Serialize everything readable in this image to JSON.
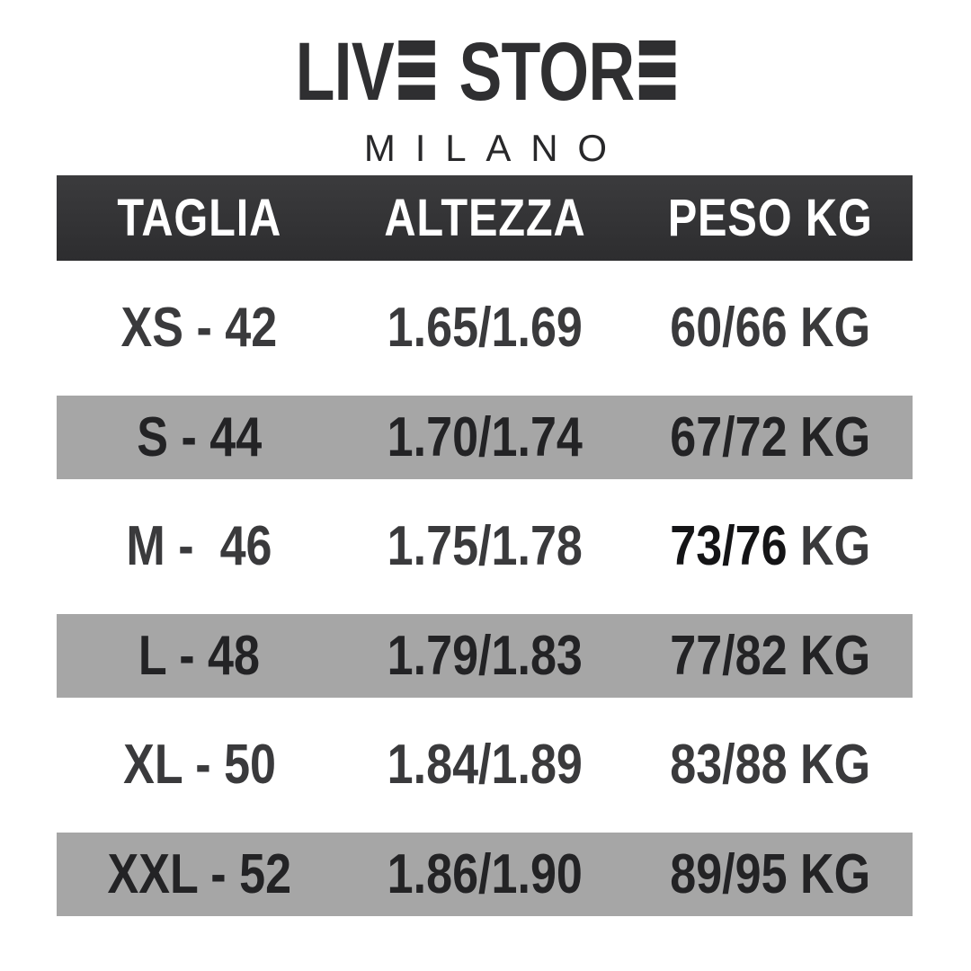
{
  "logo": {
    "word1": "LIV",
    "word2": "STOR",
    "subtitle": "MILANO"
  },
  "chart_data": {
    "type": "table",
    "columns": [
      "TAGLIA",
      "ALTEZZA",
      "PESO KG"
    ],
    "rows": [
      {
        "taglia": "XS - 42",
        "altezza": "1.65/1.69",
        "peso": "60/66",
        "peso_unit": "KG"
      },
      {
        "taglia": "S - 44",
        "altezza": "1.70/1.74",
        "peso": "67/72",
        "peso_unit": "KG"
      },
      {
        "taglia": "M -  46",
        "altezza": "1.75/1.78",
        "peso": "73/76",
        "peso_unit": "KG"
      },
      {
        "taglia": "L - 48",
        "altezza": "1.79/1.83",
        "peso": "77/82",
        "peso_unit": "KG"
      },
      {
        "taglia": "XL - 50",
        "altezza": "1.84/1.89",
        "peso": "83/88",
        "peso_unit": "KG"
      },
      {
        "taglia": "XXL - 52",
        "altezza": "1.86/1.90",
        "peso": "89/95",
        "peso_unit": "KG"
      }
    ]
  },
  "colors": {
    "header_bg": "#323234",
    "alt_row_bg": "#a6a6a6",
    "text_dark": "#3a3a3c",
    "text_on_alt": "#232325",
    "logo": "#2f2f31"
  }
}
